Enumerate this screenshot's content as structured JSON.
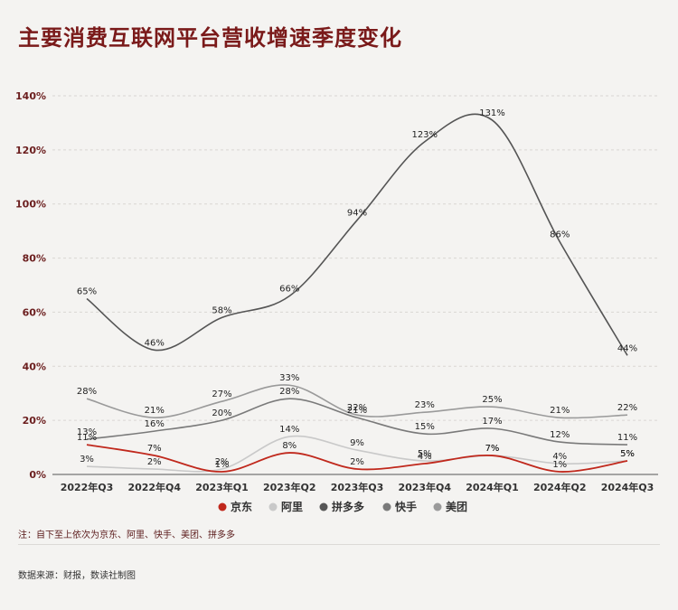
{
  "chart_data": {
    "type": "line",
    "title": "主要消费互联网平台营收增速季度变化",
    "xlabel": "",
    "ylabel": "",
    "categories": [
      "2022年Q3",
      "2022年Q4",
      "2023年Q1",
      "2023年Q2",
      "2023年Q3",
      "2023年Q4",
      "2024年Q1",
      "2024年Q2",
      "2024年Q3"
    ],
    "ylim": [
      0,
      140
    ],
    "yticks": [
      0,
      20,
      40,
      60,
      80,
      100,
      120,
      140
    ],
    "ytick_labels": [
      "0%",
      "20%",
      "40%",
      "60%",
      "80%",
      "100%",
      "120%",
      "140%"
    ],
    "grid": true,
    "legend_position": "bottom",
    "series": [
      {
        "name": "京东",
        "color": "#c0281c",
        "values": [
          11,
          7,
          1,
          8,
          2,
          4,
          7,
          1,
          5
        ]
      },
      {
        "name": "阿里",
        "color": "#c9c9c9",
        "values": [
          3,
          2,
          2,
          14,
          9,
          5,
          7,
          4,
          5
        ]
      },
      {
        "name": "拼多多",
        "color": "#555555",
        "values": [
          65,
          46,
          58,
          66,
          94,
          123,
          131,
          86,
          44
        ]
      },
      {
        "name": "快手",
        "color": "#7a7a7a",
        "values": [
          13,
          16,
          20,
          28,
          21,
          15,
          17,
          12,
          11
        ]
      },
      {
        "name": "美团",
        "color": "#9a9a9a",
        "values": [
          28,
          21,
          27,
          33,
          22,
          23,
          25,
          21,
          22
        ]
      }
    ]
  },
  "note": "注：自下至上依次为京东、阿里、快手、美团、拼多多",
  "source": "数据来源：财报，数读社制图"
}
